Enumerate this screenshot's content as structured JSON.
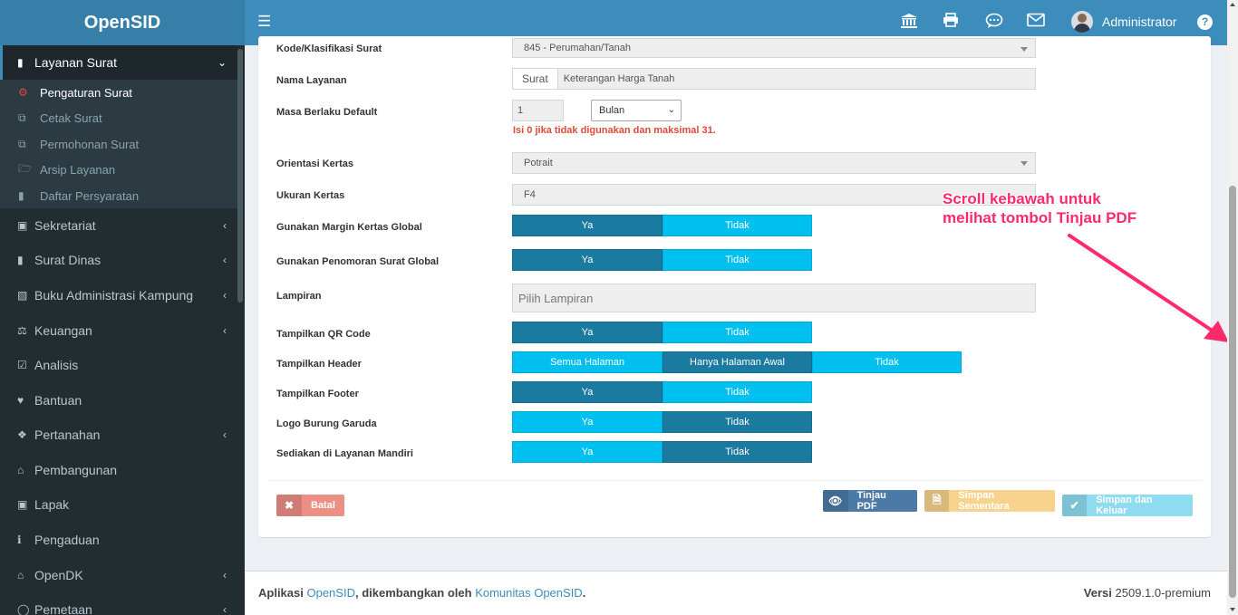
{
  "brand": "OpenSID",
  "header": {
    "user_name": "Administrator"
  },
  "sidebar": {
    "active": {
      "label": "Layanan Surat"
    },
    "submenu": [
      {
        "label": "Pengaturan Surat",
        "icon": "gear-icon"
      },
      {
        "label": "Cetak Surat",
        "icon": "copy-icon"
      },
      {
        "label": "Permohonan Surat",
        "icon": "copy-icon"
      },
      {
        "label": "Arsip Layanan",
        "icon": "folder-open-icon"
      },
      {
        "label": "Daftar Persyaratan",
        "icon": "book-icon"
      }
    ],
    "items": [
      {
        "label": "Sekretariat"
      },
      {
        "label": "Surat Dinas"
      },
      {
        "label": "Buku Administrasi Kampung"
      },
      {
        "label": "Keuangan"
      },
      {
        "label": "Analisis"
      },
      {
        "label": "Bantuan"
      },
      {
        "label": "Pertanahan"
      },
      {
        "label": "Pembangunan"
      },
      {
        "label": "Lapak"
      },
      {
        "label": "Pengaduan"
      },
      {
        "label": "OpenDK"
      },
      {
        "label": "Pemetaan"
      }
    ]
  },
  "form": {
    "kode": {
      "label": "Kode/Klasifikasi Surat",
      "value": "845 - Perumahan/Tanah"
    },
    "nama": {
      "label": "Nama Layanan",
      "prefix": "Surat",
      "value": "Keterangan Harga Tanah"
    },
    "masa": {
      "label": "Masa Berlaku Default",
      "value": "1",
      "unit": "Bulan",
      "hint": "Isi 0 jika tidak digunakan dan maksimal 31."
    },
    "orientasi": {
      "label": "Orientasi Kertas",
      "value": "Potrait"
    },
    "ukuran": {
      "label": "Ukuran Kertas",
      "value": "F4"
    },
    "margin": {
      "label": "Gunakan Margin Kertas Global",
      "opt_a": "Ya",
      "opt_b": "Tidak"
    },
    "penomoran": {
      "label": "Gunakan Penomoran Surat Global",
      "opt_a": "Ya",
      "opt_b": "Tidak"
    },
    "lampiran": {
      "label": "Lampiran",
      "placeholder": "Pilih Lampiran"
    },
    "qr": {
      "label": "Tampilkan QR Code",
      "opt_a": "Ya",
      "opt_b": "Tidak"
    },
    "header": {
      "label": "Tampilkan Header",
      "opt_a": "Semua Halaman",
      "opt_b": "Hanya Halaman Awal",
      "opt_c": "Tidak"
    },
    "footer": {
      "label": "Tampilkan Footer",
      "opt_a": "Ya",
      "opt_b": "Tidak"
    },
    "garuda": {
      "label": "Logo Burung Garuda",
      "opt_a": "Ya",
      "opt_b": "Tidak"
    },
    "mandiri": {
      "label": "Sediakan di Layanan Mandiri",
      "opt_a": "Ya",
      "opt_b": "Tidak"
    }
  },
  "buttons": {
    "batal": "Batal",
    "tinjau": "Tinjau PDF",
    "simpan_sementara": "Simpan Sementara",
    "simpan_keluar": "Simpan dan Keluar"
  },
  "annotation": {
    "line1": "Scroll kebawah untuk",
    "line2": "melihat tombol Tinjau PDF",
    "color": "#ff2a6a"
  },
  "footer": {
    "prefix": "Aplikasi",
    "app": "OpenSID",
    "middle": ", dikembangkan oleh",
    "community": "Komunitas OpenSID",
    "end": ".",
    "version_label": "Versi",
    "version": "2509.1.0-premium"
  }
}
